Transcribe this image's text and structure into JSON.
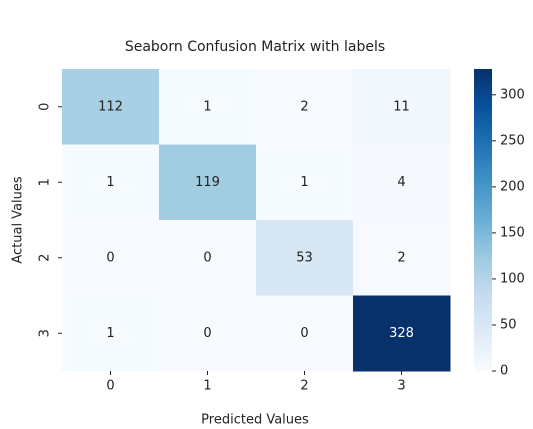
{
  "chart_data": {
    "type": "heatmap",
    "title": "Seaborn Confusion Matrix with labels",
    "xlabel": "Predicted Values",
    "ylabel": "Actual Values",
    "x": [
      "0",
      "1",
      "2",
      "3"
    ],
    "y": [
      "0",
      "1",
      "2",
      "3"
    ],
    "values": [
      [
        112,
        1,
        2,
        11
      ],
      [
        1,
        119,
        1,
        4
      ],
      [
        0,
        0,
        53,
        2
      ],
      [
        1,
        0,
        0,
        328
      ]
    ],
    "zlim": [
      0,
      328
    ],
    "colorbar_ticks": [
      0,
      50,
      100,
      150,
      200,
      250,
      300
    ],
    "colormap": "Blues"
  }
}
